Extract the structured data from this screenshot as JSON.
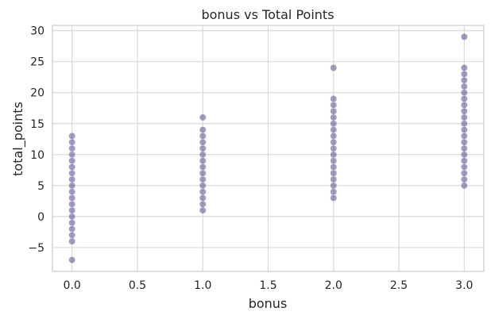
{
  "chart_data": {
    "type": "scatter",
    "title": "bonus vs Total Points",
    "xlabel": "bonus",
    "ylabel": "total_points",
    "xlim": [
      -0.15,
      3.15
    ],
    "ylim": [
      -8.85,
      30.85
    ],
    "x_ticks": [
      0.0,
      0.5,
      1.0,
      1.5,
      2.0,
      2.5,
      3.0
    ],
    "x_tick_labels": [
      "0.0",
      "0.5",
      "1.0",
      "1.5",
      "2.0",
      "2.5",
      "3.0"
    ],
    "y_ticks": [
      -5,
      0,
      5,
      10,
      15,
      20,
      25,
      30
    ],
    "y_tick_labels": [
      "−5",
      "0",
      "5",
      "10",
      "15",
      "20",
      "25",
      "30"
    ],
    "grid": true,
    "marker_color": "#3b2470",
    "marker_alpha": 0.45,
    "series": [
      {
        "values": [
          [
            0,
            -7
          ],
          [
            0,
            -4
          ],
          [
            0,
            -3
          ],
          [
            0,
            -2
          ],
          [
            0,
            -1
          ],
          [
            0,
            0
          ],
          [
            0,
            1
          ],
          [
            0,
            2
          ],
          [
            0,
            3
          ],
          [
            0,
            4
          ],
          [
            0,
            5
          ],
          [
            0,
            6
          ],
          [
            0,
            7
          ],
          [
            0,
            8
          ],
          [
            0,
            9
          ],
          [
            0,
            10
          ],
          [
            0,
            11
          ],
          [
            0,
            12
          ],
          [
            0,
            13
          ],
          [
            1,
            1
          ],
          [
            1,
            2
          ],
          [
            1,
            3
          ],
          [
            1,
            4
          ],
          [
            1,
            5
          ],
          [
            1,
            6
          ],
          [
            1,
            7
          ],
          [
            1,
            8
          ],
          [
            1,
            9
          ],
          [
            1,
            10
          ],
          [
            1,
            11
          ],
          [
            1,
            12
          ],
          [
            1,
            13
          ],
          [
            1,
            14
          ],
          [
            1,
            16
          ],
          [
            2,
            3
          ],
          [
            2,
            4
          ],
          [
            2,
            5
          ],
          [
            2,
            6
          ],
          [
            2,
            7
          ],
          [
            2,
            8
          ],
          [
            2,
            9
          ],
          [
            2,
            10
          ],
          [
            2,
            11
          ],
          [
            2,
            12
          ],
          [
            2,
            13
          ],
          [
            2,
            14
          ],
          [
            2,
            15
          ],
          [
            2,
            16
          ],
          [
            2,
            17
          ],
          [
            2,
            18
          ],
          [
            2,
            19
          ],
          [
            2,
            24
          ],
          [
            3,
            5
          ],
          [
            3,
            6
          ],
          [
            3,
            7
          ],
          [
            3,
            8
          ],
          [
            3,
            9
          ],
          [
            3,
            10
          ],
          [
            3,
            11
          ],
          [
            3,
            12
          ],
          [
            3,
            13
          ],
          [
            3,
            14
          ],
          [
            3,
            15
          ],
          [
            3,
            16
          ],
          [
            3,
            17
          ],
          [
            3,
            18
          ],
          [
            3,
            19
          ],
          [
            3,
            20
          ],
          [
            3,
            21
          ],
          [
            3,
            22
          ],
          [
            3,
            23
          ],
          [
            3,
            24
          ],
          [
            3,
            29
          ]
        ]
      }
    ]
  }
}
